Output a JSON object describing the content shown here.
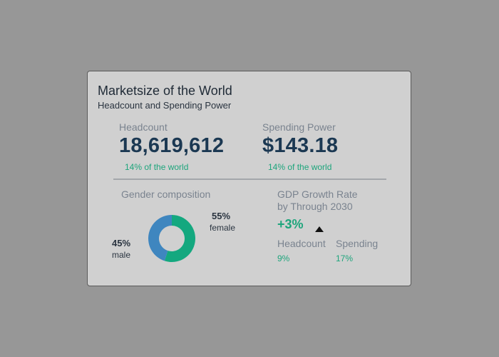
{
  "card": {
    "title": "Marketsize of the World",
    "subtitle": "Headcount and Spending Power"
  },
  "headcount": {
    "label": "Headcount",
    "value": "18,619,612",
    "share": "14% of the world"
  },
  "spending": {
    "label": "Spending Power",
    "value": "$143.18",
    "share": "14% of the world"
  },
  "gender": {
    "label": "Gender composition",
    "male_pct": "45%",
    "male_label": "male",
    "female_pct": "55%",
    "female_label": "female"
  },
  "gdp": {
    "label_line1": "GDP Growth Rate",
    "label_line2": "by Through 2030",
    "growth": "+3%",
    "headcount_label": "Headcount",
    "headcount_value": "9%",
    "spending_label": "Spending",
    "spending_value": "17%"
  },
  "chart_data": {
    "type": "pie",
    "categories": [
      "female",
      "male"
    ],
    "values": [
      55,
      45
    ],
    "colors": [
      "#14a87f",
      "#3f86bf"
    ]
  },
  "colors": {
    "background": "#979797",
    "card": "#d0d0d0",
    "value_text": "#1b3852",
    "accent_green": "#1ea57c",
    "accent_blue": "#3f86bf"
  }
}
